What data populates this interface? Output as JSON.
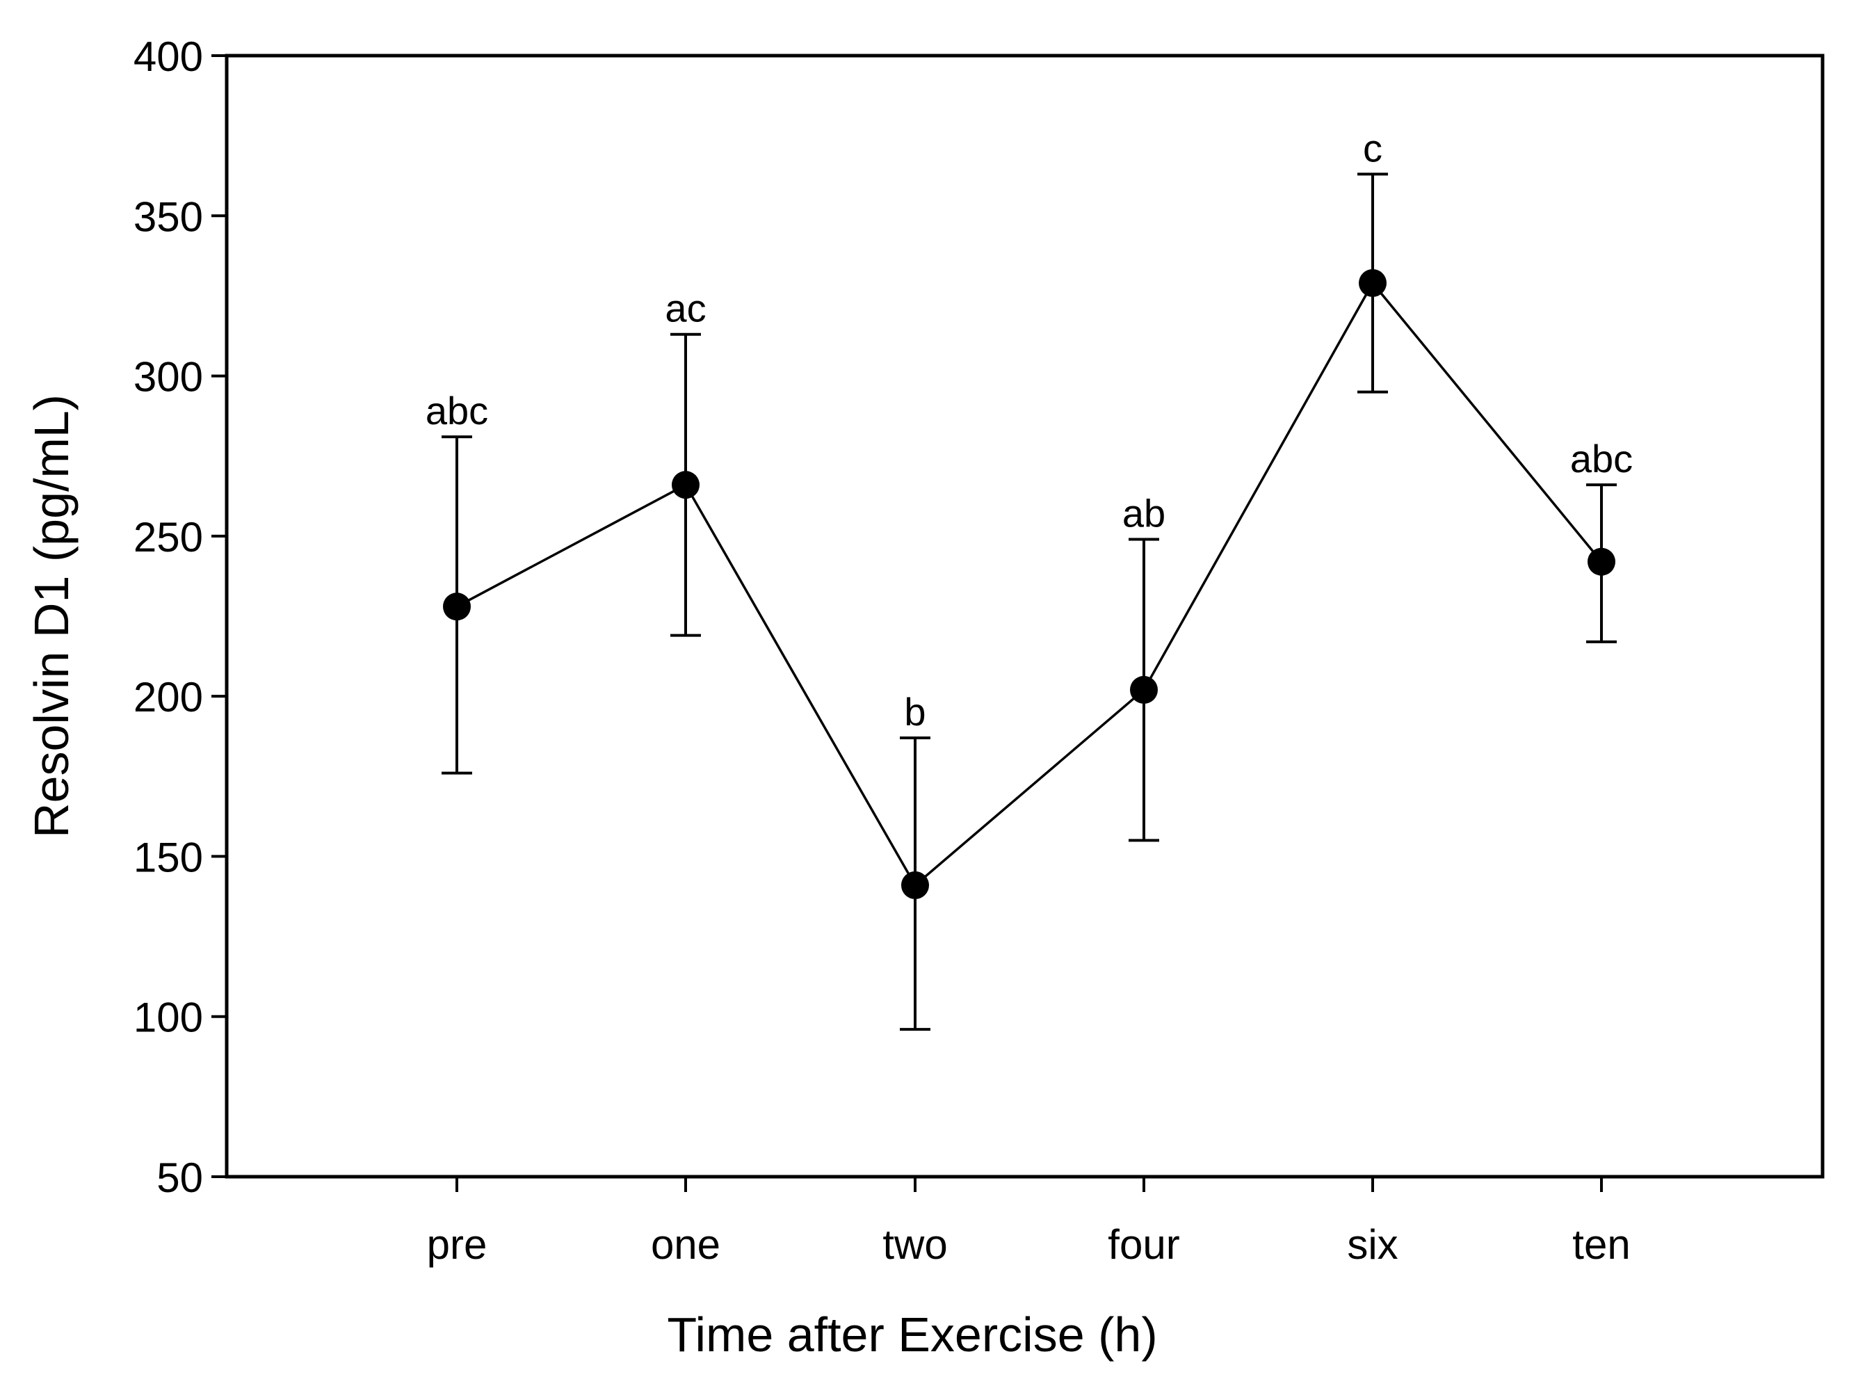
{
  "chart_data": {
    "type": "line",
    "title": "",
    "xlabel": "Time after Exercise (h)",
    "ylabel": "Resolvin D1 (pg/mL)",
    "ylim": [
      50,
      400
    ],
    "yticks": [
      50,
      100,
      150,
      200,
      250,
      300,
      350,
      400
    ],
    "grid": false,
    "categories": [
      "pre",
      "one",
      "two",
      "four",
      "six",
      "ten"
    ],
    "series": [
      {
        "name": "Resolvin D1",
        "values": [
          228,
          266,
          141,
          202,
          329,
          242
        ],
        "error_upper": [
          281,
          313,
          187,
          249,
          363,
          266
        ],
        "error_lower": [
          176,
          219,
          96,
          155,
          295,
          217
        ],
        "annotations": [
          "abc",
          "ac",
          "b",
          "ab",
          "c",
          "abc"
        ]
      }
    ],
    "colors": {
      "line": "#000000",
      "marker": "#000000",
      "axis": "#000000"
    }
  }
}
